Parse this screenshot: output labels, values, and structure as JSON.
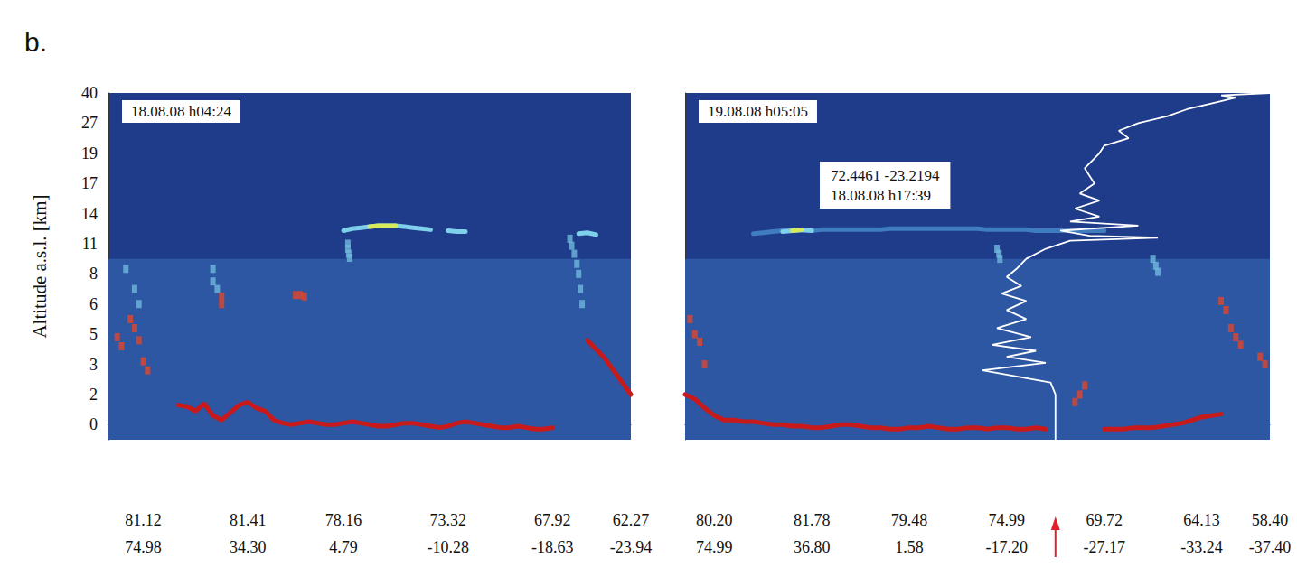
{
  "figure_label": "b.",
  "chart_data": [
    {
      "type": "curtain",
      "title": "18.08.08 h04:24",
      "ylabel": "Altitude a.s.l. [km]",
      "grid": false,
      "categories": [
        null,
        null,
        null,
        null,
        "81.12\n74.98",
        null,
        null,
        null,
        null,
        null,
        null,
        null,
        null,
        null,
        null,
        null,
        "81.41\n34.30",
        null,
        null,
        null,
        null,
        null,
        null,
        null,
        null,
        null,
        null,
        "78.16\n4.79",
        null,
        null,
        null,
        null,
        null,
        null,
        null,
        null,
        null,
        null,
        null,
        "73.32\n-10.28",
        null,
        null,
        null,
        null,
        null,
        null,
        null,
        null,
        null,
        null,
        null,
        "67.92\n-18.63",
        null,
        null,
        null,
        null,
        null,
        null,
        null,
        null,
        "62.27\n-23.94"
      ],
      "ylim": [
        -1,
        40
      ],
      "yticks": [
        0,
        2,
        3,
        5,
        6,
        8,
        11,
        14,
        17,
        19,
        27,
        40
      ],
      "series": [
        {
          "type": "area",
          "color": "#2d57a3",
          "values": [
            9.5,
            9.5,
            9.5,
            9.5,
            9.5,
            9.5,
            9.5,
            9.5,
            9.5,
            9.5,
            9.5,
            9.5,
            9.5,
            9.5,
            9.5,
            9.5,
            9.5,
            9.5,
            9.5,
            9.5,
            9.5,
            9.5,
            9.5,
            9.5,
            9.5,
            9.5,
            9.5,
            9.5,
            9.5,
            9.5,
            9.5,
            9.5,
            9.5,
            9.5,
            9.5,
            9.5,
            9.5,
            9.5,
            9.5,
            9.5,
            9.5,
            9.5,
            9.5,
            9.5,
            9.5,
            9.5,
            9.5,
            9.5,
            9.5,
            9.5,
            9.5,
            9.5,
            9.5,
            9.5,
            9.5,
            9.5,
            9.5,
            9.5,
            9.5,
            9.5,
            9.5
          ]
        },
        {
          "type": "line",
          "color": "#c8191b",
          "values": [
            null,
            null,
            null,
            null,
            null,
            null,
            null,
            null,
            1.3,
            1.2,
            0.9,
            1.4,
            0.6,
            0.3,
            0.8,
            1.3,
            1.5,
            1.1,
            0.9,
            0.3,
            0.1,
            0.0,
            0.1,
            0.2,
            0.1,
            0.0,
            0.0,
            0.1,
            0.2,
            0.1,
            0.0,
            -0.1,
            -0.1,
            0.0,
            0.1,
            0.1,
            0.0,
            -0.1,
            -0.2,
            -0.1,
            0.1,
            0.2,
            0.1,
            0.0,
            -0.1,
            -0.2,
            -0.2,
            -0.1,
            -0.2,
            -0.3,
            -0.3,
            -0.2,
            null,
            null,
            null,
            4.6,
            4.0,
            3.4,
            2.8,
            2.4,
            2.0
          ]
        },
        {
          "type": "line",
          "color": "#7fd0ea",
          "values": [
            null,
            null,
            null,
            null,
            null,
            null,
            null,
            null,
            null,
            null,
            null,
            null,
            null,
            null,
            null,
            null,
            null,
            null,
            null,
            null,
            null,
            null,
            null,
            null,
            null,
            null,
            null,
            12.3,
            12.5,
            12.6,
            12.7,
            12.8,
            12.8,
            12.8,
            12.7,
            12.6,
            12.5,
            12.4,
            null,
            12.3,
            12.2,
            12.2,
            null,
            null,
            null,
            null,
            null,
            null,
            null,
            null,
            null,
            null,
            null,
            null,
            12.0,
            12.1,
            11.9,
            null,
            null,
            null,
            null
          ]
        },
        {
          "type": "line",
          "color": "#d6ea5c",
          "values": [
            null,
            null,
            null,
            null,
            null,
            null,
            null,
            null,
            null,
            null,
            null,
            null,
            null,
            null,
            null,
            null,
            null,
            null,
            null,
            null,
            null,
            null,
            null,
            null,
            null,
            null,
            null,
            null,
            null,
            null,
            12.7,
            12.8,
            12.8,
            12.8,
            null,
            null,
            null,
            null,
            null,
            null,
            null,
            null,
            null,
            null,
            null,
            null,
            null,
            null,
            null,
            null,
            null,
            null,
            null,
            null,
            null,
            null,
            null,
            null,
            null,
            null,
            null
          ]
        },
        {
          "type": "scatter",
          "marker": "square",
          "color": "#6fb8dc",
          "points": [
            [
              27.5,
              11.0
            ],
            [
              27.5,
              10.5
            ],
            [
              27.6,
              10.0
            ],
            [
              27.7,
              9.6
            ],
            [
              53.0,
              11.5
            ],
            [
              53.2,
              10.8
            ],
            [
              53.5,
              10.0
            ],
            [
              53.8,
              9.0
            ],
            [
              54.0,
              8.0
            ],
            [
              54.2,
              7.0
            ],
            [
              54.4,
              6.0
            ],
            [
              12.0,
              8.5
            ],
            [
              12.0,
              7.5
            ],
            [
              12.5,
              7.0
            ],
            [
              2.0,
              8.5
            ],
            [
              3.0,
              7.0
            ],
            [
              3.5,
              6.0
            ]
          ]
        },
        {
          "type": "scatter",
          "marker": "square",
          "color": "#e0462a",
          "points": [
            [
              1.0,
              4.8
            ],
            [
              1.5,
              4.2
            ],
            [
              2.5,
              5.5
            ],
            [
              3.0,
              5.2
            ],
            [
              3.5,
              4.6
            ],
            [
              4.0,
              3.2
            ],
            [
              4.5,
              2.8
            ],
            [
              21.5,
              6.6
            ],
            [
              22.0,
              6.6
            ],
            [
              22.5,
              6.5
            ],
            [
              13.0,
              6.5
            ],
            [
              13.0,
              6.0
            ]
          ]
        }
      ]
    },
    {
      "type": "curtain",
      "title": "19.08.08 h05:05",
      "tick_labels": "x",
      "grid": false,
      "categories": [
        null,
        null,
        null,
        "80.20\n74.99",
        null,
        null,
        null,
        null,
        null,
        null,
        null,
        null,
        null,
        "81.78\n36.80",
        null,
        null,
        null,
        null,
        null,
        null,
        null,
        null,
        null,
        "79.48\n1.58",
        null,
        null,
        null,
        null,
        null,
        null,
        null,
        null,
        null,
        "74.99\n-17.20",
        null,
        null,
        null,
        null,
        null,
        null,
        null,
        null,
        null,
        "69.72\n-27.17",
        null,
        null,
        null,
        null,
        null,
        null,
        null,
        null,
        null,
        "64.13\n-33.24",
        null,
        null,
        null,
        null,
        null,
        null,
        "58.40\n-37.40"
      ],
      "ylim": [
        -1,
        40
      ],
      "yticks": [
        0,
        2,
        3,
        5,
        6,
        8,
        11,
        14,
        17,
        19,
        27,
        40
      ],
      "series": [
        {
          "type": "area",
          "color": "#2d57a3",
          "values": [
            9.5,
            9.5,
            9.5,
            9.5,
            9.5,
            9.5,
            9.5,
            9.5,
            9.5,
            9.5,
            9.5,
            9.5,
            9.5,
            9.5,
            9.5,
            9.5,
            9.5,
            9.5,
            9.5,
            9.5,
            9.5,
            9.5,
            9.5,
            9.5,
            9.5,
            9.5,
            9.5,
            9.5,
            9.5,
            9.5,
            9.5,
            9.5,
            9.5,
            9.5,
            9.5,
            9.5,
            9.5,
            9.5,
            9.5,
            9.5,
            9.5,
            9.5,
            9.5,
            9.5,
            9.5,
            9.5,
            9.5,
            9.5,
            9.5,
            9.5,
            9.5,
            9.5,
            9.5,
            9.5,
            9.5,
            9.5,
            9.5,
            9.5,
            9.5,
            9.5,
            9.5
          ]
        },
        {
          "type": "line",
          "color": "#c8191b",
          "values": [
            2.0,
            1.7,
            1.1,
            0.6,
            0.3,
            0.3,
            0.2,
            0.2,
            0.1,
            0.0,
            0.0,
            -0.1,
            -0.1,
            -0.2,
            -0.2,
            -0.1,
            0.0,
            0.0,
            -0.1,
            -0.2,
            -0.2,
            -0.3,
            -0.3,
            -0.2,
            -0.2,
            -0.1,
            -0.2,
            -0.3,
            -0.3,
            -0.2,
            -0.2,
            -0.3,
            -0.2,
            -0.2,
            -0.3,
            -0.3,
            -0.2,
            -0.3,
            null,
            null,
            null,
            null,
            null,
            -0.3,
            -0.3,
            -0.3,
            -0.2,
            -0.2,
            -0.2,
            -0.1,
            0.0,
            0.1,
            0.3,
            0.5,
            0.6,
            0.7,
            null,
            null,
            null,
            null,
            null
          ]
        },
        {
          "type": "line",
          "color": "#3f7cc0",
          "values": [
            null,
            null,
            null,
            null,
            null,
            null,
            null,
            12.0,
            12.1,
            12.2,
            12.3,
            12.3,
            12.3,
            12.3,
            12.4,
            12.4,
            12.4,
            12.4,
            12.4,
            12.4,
            12.4,
            12.5,
            12.5,
            12.5,
            12.5,
            12.5,
            12.5,
            12.5,
            12.5,
            12.5,
            12.5,
            12.4,
            12.4,
            12.4,
            12.4,
            12.4,
            12.3,
            12.3,
            12.3,
            12.3,
            12.3,
            12.3,
            12.3,
            12.3,
            null,
            null,
            null,
            null,
            null,
            null,
            null,
            null,
            null,
            null,
            null,
            null,
            null,
            null,
            null,
            null,
            null
          ]
        },
        {
          "type": "line",
          "color": "#7fd0ea",
          "values": [
            null,
            null,
            null,
            null,
            null,
            null,
            null,
            null,
            null,
            null,
            12.2,
            12.3,
            12.4,
            12.3,
            null,
            null,
            null,
            null,
            null,
            null,
            null,
            null,
            null,
            null,
            null,
            null,
            null,
            null,
            null,
            null,
            null,
            null,
            null,
            null,
            null,
            null,
            null,
            null,
            null,
            null,
            null,
            null,
            null,
            null,
            null,
            null,
            null,
            null,
            null,
            null,
            null,
            null,
            null,
            null,
            null,
            null,
            null,
            null,
            null,
            null,
            null
          ]
        },
        {
          "type": "line",
          "color": "#d6ea5c",
          "values": [
            null,
            null,
            null,
            null,
            null,
            null,
            null,
            null,
            null,
            null,
            null,
            12.3,
            12.4,
            null,
            null,
            null,
            null,
            null,
            null,
            null,
            null,
            null,
            null,
            null,
            null,
            null,
            null,
            null,
            null,
            null,
            null,
            null,
            null,
            null,
            null,
            null,
            null,
            null,
            null,
            null,
            null,
            null,
            null,
            null,
            null,
            null,
            null,
            null,
            null,
            null,
            null,
            null,
            null,
            null,
            null,
            null,
            null,
            null,
            null,
            null,
            null
          ]
        },
        {
          "type": "scatter",
          "marker": "square",
          "color": "#6fb8dc",
          "points": [
            [
              32.0,
              10.5
            ],
            [
              32.2,
              10.0
            ],
            [
              32.3,
              9.5
            ],
            [
              48.0,
              9.5
            ],
            [
              48.3,
              8.8
            ],
            [
              48.5,
              8.2
            ]
          ]
        },
        {
          "type": "scatter",
          "marker": "square",
          "color": "#e0462a",
          "points": [
            [
              55.0,
              6.2
            ],
            [
              55.5,
              5.8
            ],
            [
              56.0,
              5.2
            ],
            [
              56.5,
              4.8
            ],
            [
              57.0,
              4.3
            ],
            [
              59.0,
              3.5
            ],
            [
              59.5,
              3.0
            ],
            [
              40.0,
              1.5
            ],
            [
              40.5,
              2.0
            ],
            [
              41.0,
              2.3
            ],
            [
              0.5,
              5.5
            ],
            [
              1.0,
              5.0
            ],
            [
              1.5,
              4.5
            ],
            [
              2.0,
              3.0
            ]
          ]
        }
      ],
      "profile": {
        "color": "#ffffff",
        "x": [
          38.0,
          38.0,
          37.5,
          30.5,
          37.0,
          33.0,
          36.0,
          31.5,
          35.5,
          32.0,
          35.0,
          33.0,
          35.0,
          32.5,
          34.5,
          33.0,
          34.0,
          35.0,
          37.0,
          39.5,
          48.5,
          41.5,
          38.5,
          46.5,
          39.5,
          42.5,
          40.0,
          42.5,
          40.5,
          42.0,
          41.0,
          42.5,
          43.0,
          45.5,
          44.5,
          46.5,
          49.5,
          51.5,
          54.5,
          56.5,
          55.0,
          60.0
        ],
        "y": [
          -1,
          2.0,
          2.4,
          2.8,
          3.1,
          3.5,
          3.9,
          4.3,
          4.8,
          5.2,
          5.5,
          5.8,
          6.2,
          6.7,
          7.2,
          7.8,
          8.5,
          9.5,
          10.5,
          11.3,
          11.6,
          11.8,
          12.3,
          12.8,
          13.2,
          13.7,
          14.5,
          15.3,
          16.0,
          17.0,
          18.0,
          19.0,
          21.0,
          23.0,
          25.0,
          27.0,
          30.0,
          33.0,
          36.0,
          38.0,
          39.0,
          40.0
        ]
      },
      "annotation": [
        "72.4461 -23.2194",
        "18.08.08 h17:39"
      ],
      "arrow": {
        "x": 38.0,
        "color": "#e3202a"
      }
    }
  ]
}
